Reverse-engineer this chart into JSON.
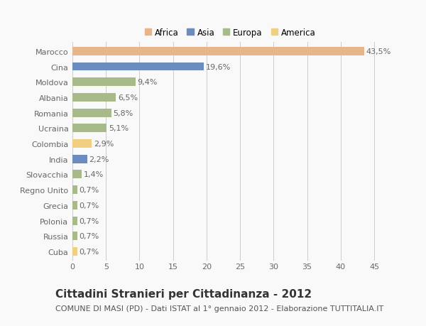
{
  "categories": [
    "Marocco",
    "Cina",
    "Moldova",
    "Albania",
    "Romania",
    "Ucraina",
    "Colombia",
    "India",
    "Slovacchia",
    "Regno Unito",
    "Grecia",
    "Polonia",
    "Russia",
    "Cuba"
  ],
  "values": [
    43.5,
    19.6,
    9.4,
    6.5,
    5.8,
    5.1,
    2.9,
    2.2,
    1.4,
    0.7,
    0.7,
    0.7,
    0.7,
    0.7
  ],
  "labels": [
    "43,5%",
    "19,6%",
    "9,4%",
    "6,5%",
    "5,8%",
    "5,1%",
    "2,9%",
    "2,2%",
    "1,4%",
    "0,7%",
    "0,7%",
    "0,7%",
    "0,7%",
    "0,7%"
  ],
  "colors": [
    "#E8B48A",
    "#6B8DBE",
    "#A8BA8A",
    "#A8BA8A",
    "#A8BA8A",
    "#A8BA8A",
    "#F0D080",
    "#6B8DBE",
    "#A8BA8A",
    "#A8BA8A",
    "#A8BA8A",
    "#A8BA8A",
    "#A8BA8A",
    "#F0D080"
  ],
  "legend_labels": [
    "Africa",
    "Asia",
    "Europa",
    "America"
  ],
  "legend_colors": [
    "#E8B48A",
    "#6B8DBE",
    "#A8BA8A",
    "#F0D080"
  ],
  "title": "Cittadini Stranieri per Cittadinanza - 2012",
  "subtitle": "COMUNE DI MASI (PD) - Dati ISTAT al 1° gennaio 2012 - Elaborazione TUTTITALIA.IT",
  "xlim": [
    0,
    47
  ],
  "xticks": [
    0,
    5,
    10,
    15,
    20,
    25,
    30,
    35,
    40,
    45
  ],
  "background_color": "#f9f9f9",
  "bar_height": 0.55,
  "grid_color": "#cccccc",
  "label_fontsize": 8,
  "tick_fontsize": 8,
  "title_fontsize": 11,
  "subtitle_fontsize": 8
}
